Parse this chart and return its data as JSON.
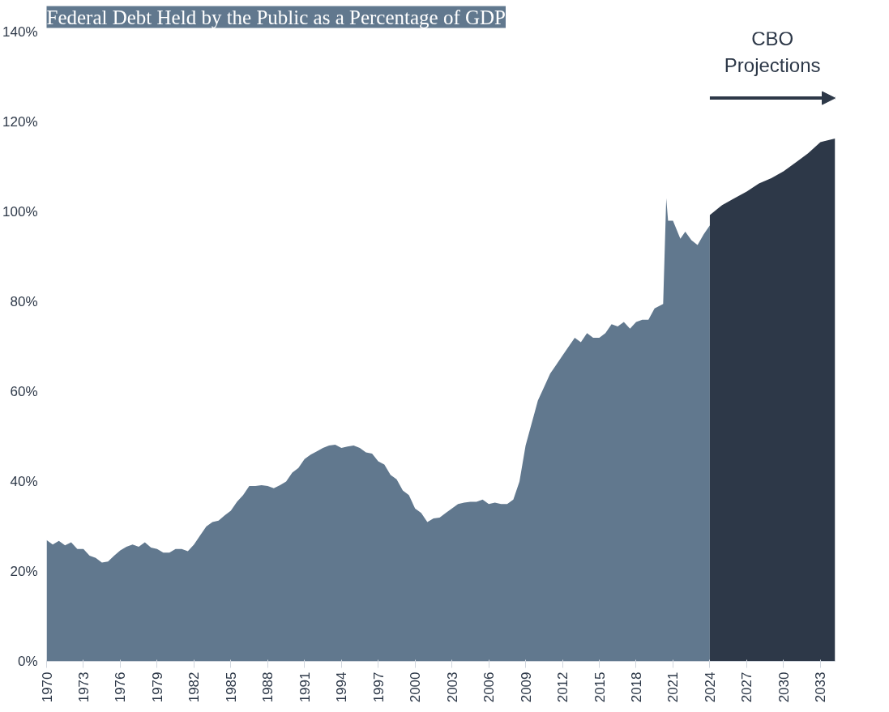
{
  "chart_data": {
    "type": "area",
    "title": "Federal Debt Held by the Public as a Percentage of GDP",
    "annotations": [
      "CBO\nProjections"
    ],
    "series": [
      {
        "color": "#61788e",
        "x": [
          1970,
          1970.5,
          1971,
          1971.5,
          1972,
          1972.5,
          1973,
          1973.5,
          1974,
          1974.5,
          1975,
          1975.5,
          1976,
          1976.5,
          1977,
          1977.5,
          1978,
          1978.5,
          1979,
          1979.5,
          1980,
          1980.5,
          1981,
          1981.5,
          1982,
          1982.5,
          1983,
          1983.5,
          1984,
          1984.5,
          1985,
          1985.5,
          1986,
          1986.5,
          1987,
          1987.5,
          1988,
          1988.5,
          1989,
          1989.5,
          1990,
          1990.5,
          1991,
          1991.5,
          1992,
          1992.5,
          1993,
          1993.5,
          1994,
          1994.5,
          1995,
          1995.5,
          1996,
          1996.5,
          1997,
          1997.5,
          1998,
          1998.5,
          1999,
          1999.5,
          2000,
          2000.5,
          2001,
          2001.5,
          2002,
          2002.5,
          2003,
          2003.5,
          2004,
          2004.5,
          2005,
          2005.5,
          2006,
          2006.5,
          2007,
          2007.5,
          2008,
          2008.5,
          2009,
          2009.5,
          2010,
          2010.5,
          2011,
          2011.5,
          2012,
          2012.5,
          2013,
          2013.5,
          2014,
          2014.5,
          2015,
          2015.5,
          2016,
          2016.5,
          2017,
          2017.5,
          2018,
          2018.5,
          2019,
          2019.5,
          2020.2,
          2020.45,
          2020.6,
          2021,
          2021.6,
          2022,
          2022.5,
          2023,
          2023.5,
          2024
        ],
        "values": [
          27,
          26,
          26.8,
          25.8,
          26.5,
          25,
          25,
          23.5,
          23,
          22,
          22.2,
          23.5,
          24.7,
          25.5,
          26,
          25.5,
          26.5,
          25.3,
          25,
          24.2,
          24.2,
          25,
          25,
          24.5,
          26,
          28,
          30,
          31,
          31.3,
          32.5,
          33.5,
          35.5,
          37,
          39,
          39,
          39.2,
          39,
          38.5,
          39.2,
          40,
          42,
          43,
          45,
          46,
          46.7,
          47.5,
          48,
          48.2,
          47.5,
          47.8,
          48,
          47.5,
          46.5,
          46.2,
          44.5,
          43.8,
          41.5,
          40.5,
          38,
          37,
          34,
          33,
          31,
          31.8,
          32,
          33,
          34,
          35,
          35.3,
          35.5,
          35.5,
          36,
          35,
          35.3,
          35,
          35,
          36,
          40,
          48,
          53,
          58,
          61,
          64,
          66,
          68,
          70,
          72,
          71,
          73,
          72,
          72,
          73,
          75,
          74.5,
          75.5,
          74,
          75.5,
          76,
          76,
          78.5,
          79.5,
          103,
          98,
          98,
          94,
          95.6,
          93.7,
          92.6,
          95,
          97
        ]
      },
      {
        "color": "#2d3848",
        "x": [
          2024,
          2025,
          2026,
          2027,
          2028,
          2029,
          2030,
          2031,
          2032,
          2033,
          2034.2
        ],
        "values": [
          99.3,
          101.5,
          103,
          104.5,
          106.3,
          107.5,
          109,
          111,
          113,
          115.5,
          116.3
        ]
      }
    ],
    "xlim": [
      1970,
      2034.2
    ],
    "xticks": [
      1970,
      1973,
      1976,
      1979,
      1982,
      1985,
      1988,
      1991,
      1994,
      1997,
      2000,
      2003,
      2006,
      2009,
      2012,
      2015,
      2018,
      2021,
      2024,
      2027,
      2030,
      2033
    ],
    "ylim": [
      0,
      140
    ],
    "yticks": [
      {
        "value": 0,
        "label": "0%"
      },
      {
        "value": 20,
        "label": "20%"
      },
      {
        "value": 40,
        "label": "40%"
      },
      {
        "value": 60,
        "label": "60%"
      },
      {
        "value": 80,
        "label": "80%"
      },
      {
        "value": 100,
        "label": "100%"
      },
      {
        "value": 120,
        "label": "120%"
      },
      {
        "value": 140,
        "label": "140%"
      }
    ],
    "grid": false
  }
}
